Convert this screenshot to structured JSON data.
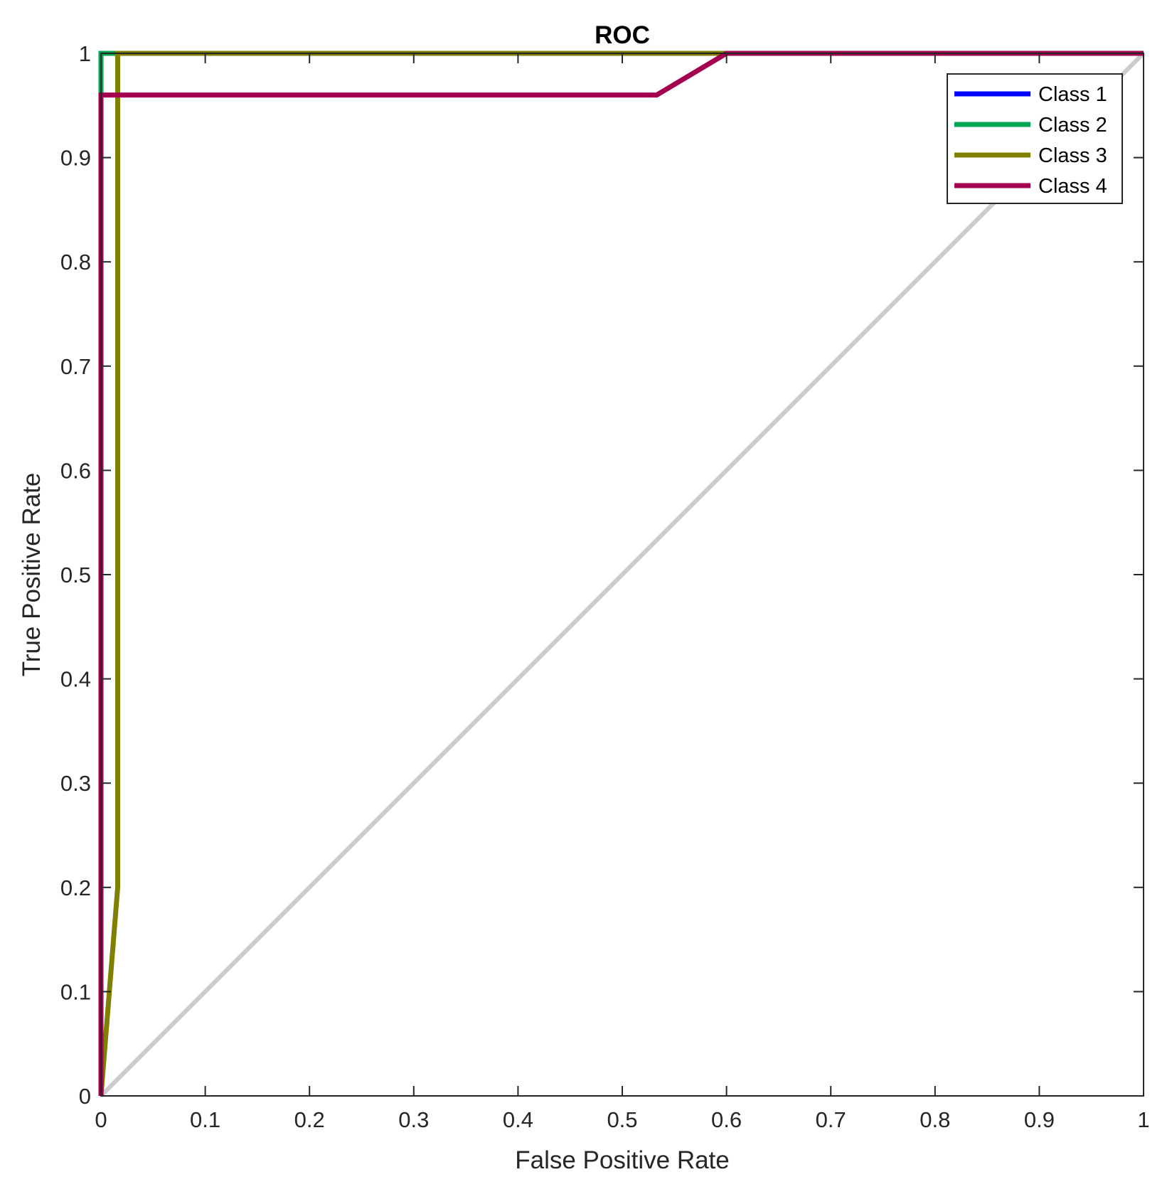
{
  "chart_data": {
    "type": "line",
    "title": "ROC",
    "xlabel": "False Positive Rate",
    "ylabel": "True Positive Rate",
    "xlim": [
      0,
      1
    ],
    "ylim": [
      0,
      1
    ],
    "xticks": [
      "0",
      "0.1",
      "0.2",
      "0.3",
      "0.4",
      "0.5",
      "0.6",
      "0.7",
      "0.8",
      "0.9",
      "1"
    ],
    "yticks": [
      "0",
      "0.1",
      "0.2",
      "0.3",
      "0.4",
      "0.5",
      "0.6",
      "0.7",
      "0.8",
      "0.9",
      "1"
    ],
    "grid": false,
    "legend_position": "top-right",
    "diagonal": {
      "x": [
        0,
        1
      ],
      "y": [
        0,
        1
      ],
      "color": "#cccccc"
    },
    "series": [
      {
        "name": "Class 1",
        "color": "#0000ff",
        "x": [
          0,
          0,
          0.015,
          1
        ],
        "y": [
          0,
          1,
          1,
          1
        ]
      },
      {
        "name": "Class 2",
        "color": "#00a651",
        "x": [
          0,
          0,
          0.015,
          1
        ],
        "y": [
          0,
          1,
          1,
          1
        ]
      },
      {
        "name": "Class 3",
        "color": "#808000",
        "x": [
          0,
          0.016,
          0.016,
          0.6,
          1
        ],
        "y": [
          0,
          0.2,
          1,
          1,
          1
        ]
      },
      {
        "name": "Class 4",
        "color": "#a50050",
        "x": [
          0,
          0,
          0.533,
          0.6,
          1
        ],
        "y": [
          0,
          0.96,
          0.96,
          1,
          1
        ]
      }
    ]
  }
}
